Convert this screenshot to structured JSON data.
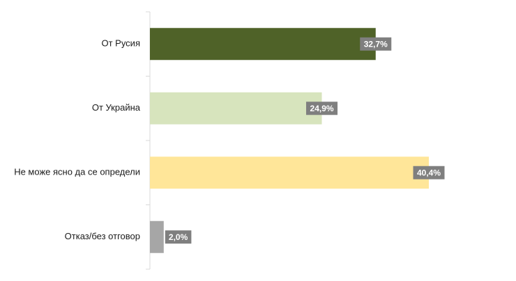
{
  "chart_data": {
    "type": "bar",
    "orientation": "horizontal",
    "categories": [
      "От Русия",
      "От Украйна",
      "Не може ясно да се определи",
      "Отказ/без отговор"
    ],
    "values": [
      32.7,
      24.9,
      40.4,
      2.0
    ],
    "value_labels": [
      "32,7%",
      "24,9%",
      "40,4%",
      "2,0%"
    ],
    "colors": [
      "#4f6228",
      "#d7e4bd",
      "#ffe699",
      "#a6a6a6"
    ],
    "label_box_color": "#7f7f7f",
    "xlim": [
      0,
      40.4
    ],
    "grid": false,
    "legend": "none"
  }
}
